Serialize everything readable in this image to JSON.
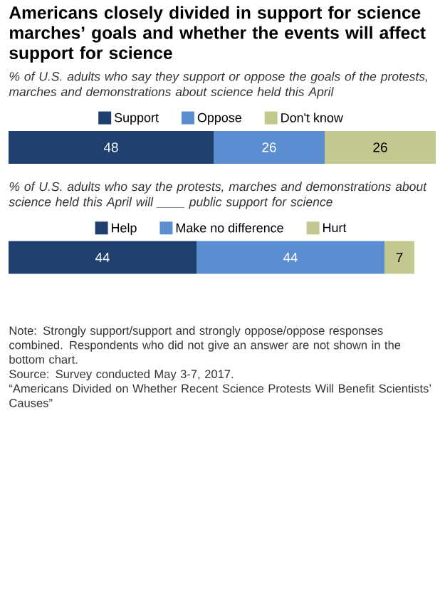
{
  "chart_data": [
    {
      "type": "bar",
      "orientation": "horizontal",
      "stacked": true,
      "title": "Americans closely divided in support for science marches’ goals and whether the events will affect support for science",
      "subtitle": "% of U.S. adults who say they support or oppose the goals of the protests, marches and demonstrations about science held this April",
      "categories": [
        null
      ],
      "legend": "top",
      "data_labels": true,
      "series": [
        {
          "name": "Support",
          "color": "#1f3f6e",
          "values": [
            48
          ]
        },
        {
          "name": "Oppose",
          "color": "#5a8ed0",
          "values": [
            26
          ]
        },
        {
          "name": "Don't know",
          "color": "#c3c98e",
          "values": [
            26
          ]
        }
      ]
    },
    {
      "type": "bar",
      "orientation": "horizontal",
      "stacked": true,
      "subtitle": "% of U.S. adults who say the protests, marches and demonstrations about science held this April will ____ public support for science",
      "categories": [
        null
      ],
      "legend": "top",
      "data_labels": true,
      "series": [
        {
          "name": "Help",
          "color": "#1f3f6e",
          "values": [
            44
          ]
        },
        {
          "name": "Make no difference",
          "color": "#5a8ed0",
          "values": [
            44
          ]
        },
        {
          "name": "Hurt",
          "color": "#c3c98e",
          "values": [
            7
          ]
        }
      ],
      "annotations": [
        "Note: Strongly support/support and strongly oppose/oppose responses combined. Respondents who did not give an answer are not shown in the bottom chart.",
        "Source: Survey conducted May 3-7, 2017.",
        "“Americans Divided on Whether Recent Science Protests Will Benefit Scientists’ Causes”"
      ]
    }
  ]
}
